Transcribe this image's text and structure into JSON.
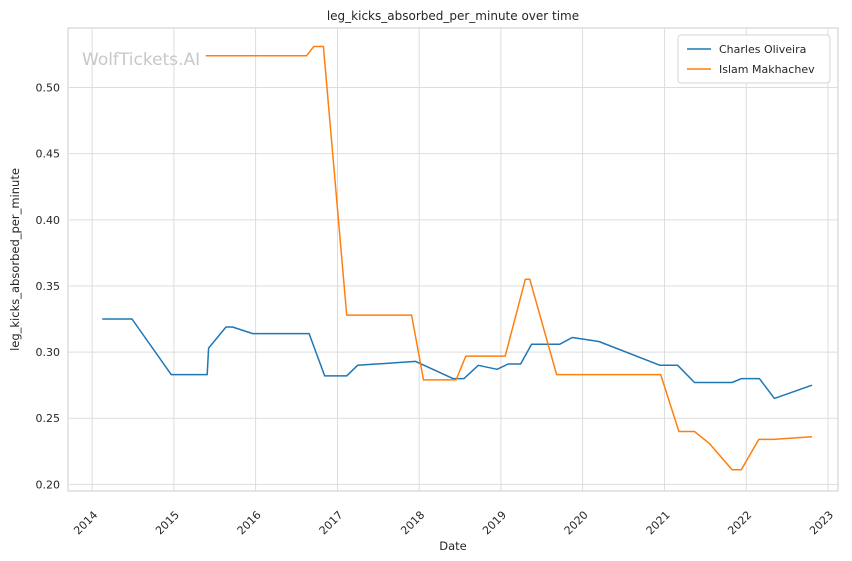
{
  "chart_data": {
    "type": "line",
    "title": "leg_kicks_absorbed_per_minute over time",
    "xlabel": "Date",
    "ylabel": "leg_kicks_absorbed_per_minute",
    "watermark": "WolfTickets.AI",
    "xlim": [
      "2013-09-15",
      "2023-02-15"
    ],
    "ylim": [
      0.195,
      0.545
    ],
    "x_ticks": [
      "2014",
      "2015",
      "2016",
      "2017",
      "2018",
      "2019",
      "2020",
      "2021",
      "2022",
      "2023"
    ],
    "y_ticks": [
      0.2,
      0.25,
      0.3,
      0.35,
      0.4,
      0.45,
      0.5
    ],
    "grid": true,
    "legend_position": "top-right",
    "series": [
      {
        "name": "Charles Oliveira",
        "color": "#1f77b4",
        "points": [
          [
            "2014-02-15",
            0.325
          ],
          [
            "2014-06-28",
            0.325
          ],
          [
            "2014-12-20",
            0.283
          ],
          [
            "2015-05-30",
            0.283
          ],
          [
            "2015-06-05",
            0.303
          ],
          [
            "2015-08-22",
            0.319
          ],
          [
            "2015-09-20",
            0.319
          ],
          [
            "2015-12-19",
            0.314
          ],
          [
            "2016-08-27",
            0.314
          ],
          [
            "2016-11-05",
            0.282
          ],
          [
            "2017-02-11",
            0.282
          ],
          [
            "2017-04-01",
            0.29
          ],
          [
            "2017-12-16",
            0.293
          ],
          [
            "2018-06-01",
            0.28
          ],
          [
            "2018-07-20",
            0.28
          ],
          [
            "2018-09-22",
            0.29
          ],
          [
            "2018-12-15",
            0.287
          ],
          [
            "2019-02-02",
            0.291
          ],
          [
            "2019-03-30",
            0.291
          ],
          [
            "2019-05-18",
            0.306
          ],
          [
            "2019-09-21",
            0.306
          ],
          [
            "2019-11-16",
            0.311
          ],
          [
            "2020-03-14",
            0.308
          ],
          [
            "2020-12-12",
            0.29
          ],
          [
            "2021-03-01",
            0.29
          ],
          [
            "2021-05-15",
            0.277
          ],
          [
            "2021-10-30",
            0.277
          ],
          [
            "2021-12-11",
            0.28
          ],
          [
            "2022-03-01",
            0.28
          ],
          [
            "2022-05-07",
            0.265
          ],
          [
            "2022-10-22",
            0.275
          ]
        ]
      },
      {
        "name": "Islam Makhachev",
        "color": "#ff7f0e",
        "points": [
          [
            "2015-05-23",
            0.524
          ],
          [
            "2016-08-15",
            0.524
          ],
          [
            "2016-09-17",
            0.531
          ],
          [
            "2016-10-30",
            0.531
          ],
          [
            "2017-02-11",
            0.328
          ],
          [
            "2017-11-28",
            0.328
          ],
          [
            "2018-01-20",
            0.279
          ],
          [
            "2018-06-15",
            0.279
          ],
          [
            "2018-07-28",
            0.297
          ],
          [
            "2019-01-20",
            0.297
          ],
          [
            "2019-04-20",
            0.355
          ],
          [
            "2019-05-10",
            0.355
          ],
          [
            "2019-09-07",
            0.283
          ],
          [
            "2020-12-15",
            0.283
          ],
          [
            "2021-03-06",
            0.24
          ],
          [
            "2021-05-15",
            0.24
          ],
          [
            "2021-07-20",
            0.231
          ],
          [
            "2021-10-30",
            0.211
          ],
          [
            "2021-12-10",
            0.211
          ],
          [
            "2022-02-26",
            0.234
          ],
          [
            "2022-05-01",
            0.234
          ],
          [
            "2022-10-22",
            0.236
          ]
        ]
      }
    ]
  }
}
